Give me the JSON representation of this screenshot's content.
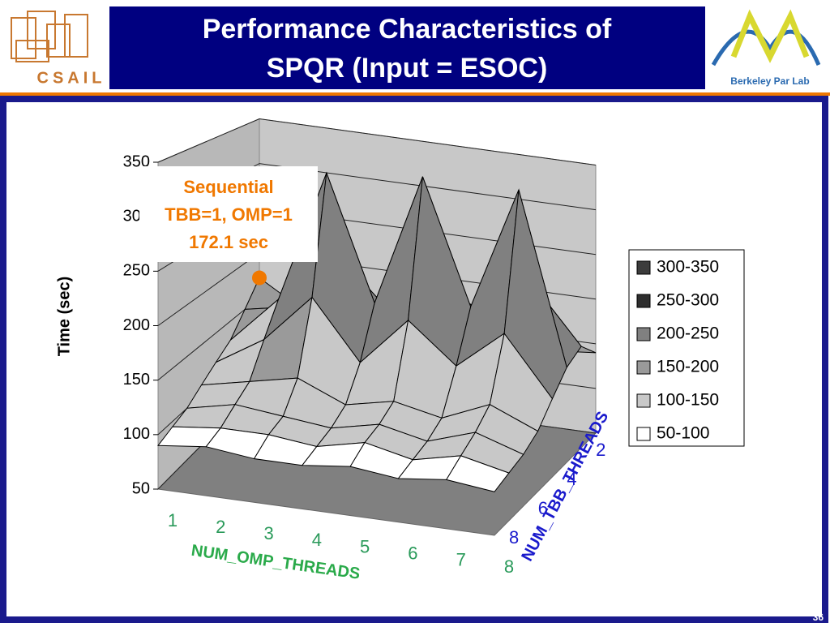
{
  "header": {
    "title_lines": [
      "Performance Characteristics of",
      "SPQR (Input = ESOC)"
    ],
    "left_logo": "CSAIL",
    "right_logo": "Berkeley Par Lab",
    "page_number": "36"
  },
  "chart_data": {
    "type": "surface",
    "ylabel": "Time (sec)",
    "xlabel": "NUM_OMP_THREADS",
    "zlabel": "NUM_TBB_THREADS",
    "x_categories": [
      1,
      2,
      3,
      4,
      5,
      6,
      7,
      8
    ],
    "z_categories": [
      null,
      2,
      null,
      4,
      null,
      6,
      null,
      8
    ],
    "ylim": [
      50,
      350
    ],
    "yticks": [
      50,
      100,
      150,
      200,
      250,
      300,
      350
    ],
    "values": [
      [
        172.1,
        140,
        125,
        130,
        120,
        125,
        135,
        140
      ],
      [
        150,
        160,
        220,
        170,
        210,
        180,
        220,
        160
      ],
      [
        130,
        180,
        320,
        190,
        330,
        200,
        330,
        150
      ],
      [
        120,
        150,
        200,
        140,
        190,
        150,
        190,
        130
      ],
      [
        110,
        120,
        130,
        110,
        120,
        110,
        130,
        110
      ],
      [
        100,
        110,
        105,
        100,
        110,
        100,
        115,
        100
      ],
      [
        95,
        100,
        100,
        95,
        105,
        95,
        105,
        95
      ],
      [
        90,
        95,
        90,
        90,
        95,
        90,
        95,
        90
      ]
    ],
    "bands": [
      {
        "name": "300-350",
        "range": [
          300,
          350
        ],
        "color": "#3c3c3c"
      },
      {
        "name": "250-300",
        "range": [
          250,
          300
        ],
        "color": "#2e2e2e"
      },
      {
        "name": "200-250",
        "range": [
          200,
          250
        ],
        "color": "#808080"
      },
      {
        "name": "150-200",
        "range": [
          150,
          200
        ],
        "color": "#9a9a9a"
      },
      {
        "name": "100-150",
        "range": [
          100,
          150
        ],
        "color": "#c8c8c8"
      },
      {
        "name": "50-100",
        "range": [
          50,
          100
        ],
        "color": "#ffffff"
      }
    ],
    "annotation": {
      "lines": [
        "Sequential",
        "TBB=1, OMP=1",
        "172.1 sec"
      ],
      "color": "#f07800"
    }
  }
}
